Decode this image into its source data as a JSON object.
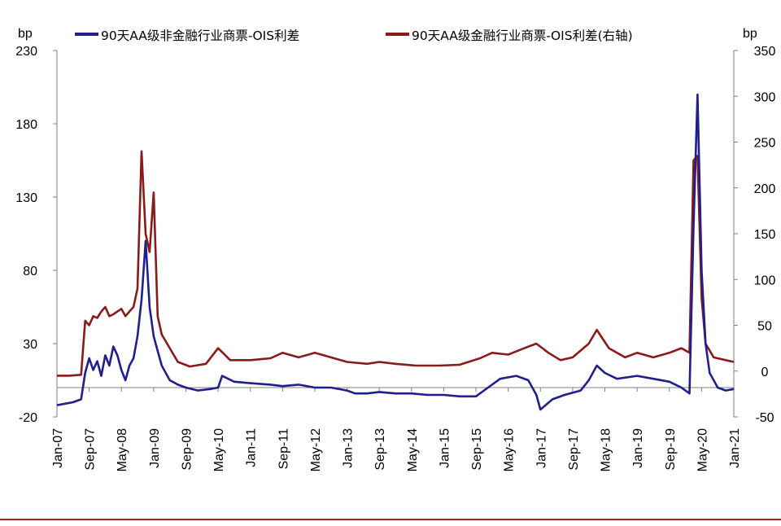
{
  "chart_data": {
    "type": "line",
    "title": "",
    "y_left": {
      "unit": "bp",
      "min": -20,
      "max": 230,
      "ticks": [
        -20,
        30,
        80,
        130,
        180,
        230
      ],
      "negative_color": "#FF0000"
    },
    "y_right": {
      "unit": "bp",
      "min": -50,
      "max": 350,
      "ticks": [
        -50,
        0,
        50,
        100,
        150,
        200,
        250,
        300,
        350
      ]
    },
    "x_ticks": [
      "Jan-07",
      "Sep-07",
      "May-08",
      "Jan-09",
      "Sep-09",
      "May-10",
      "Jan-11",
      "Sep-11",
      "May-12",
      "Jan-13",
      "Sep-13",
      "May-14",
      "Jan-15",
      "Sep-15",
      "May-16",
      "Jan-17",
      "Sep-17",
      "May-18",
      "Jan-19",
      "Sep-19",
      "May-20",
      "Jan-21"
    ],
    "x_range": [
      "2007-01",
      "2021-01"
    ],
    "grid": false,
    "legend_position": "top",
    "series": [
      {
        "name": "90天AA级非金融行业商票-OIS利差",
        "axis": "left",
        "color": "#1F1F8F",
        "points": [
          [
            "2007-01",
            -12
          ],
          [
            "2007-03",
            -11
          ],
          [
            "2007-05",
            -10
          ],
          [
            "2007-07",
            -8
          ],
          [
            "2007-08",
            10
          ],
          [
            "2007-09",
            20
          ],
          [
            "2007-10",
            12
          ],
          [
            "2007-11",
            18
          ],
          [
            "2007-12",
            8
          ],
          [
            "2008-01",
            22
          ],
          [
            "2008-02",
            15
          ],
          [
            "2008-03",
            28
          ],
          [
            "2008-04",
            22
          ],
          [
            "2008-05",
            12
          ],
          [
            "2008-06",
            5
          ],
          [
            "2008-07",
            15
          ],
          [
            "2008-08",
            20
          ],
          [
            "2008-09",
            35
          ],
          [
            "2008-10",
            60
          ],
          [
            "2008-11",
            100
          ],
          [
            "2008-12",
            55
          ],
          [
            "2009-01",
            35
          ],
          [
            "2009-02",
            25
          ],
          [
            "2009-03",
            15
          ],
          [
            "2009-05",
            5
          ],
          [
            "2009-07",
            2
          ],
          [
            "2009-09",
            0
          ],
          [
            "2009-12",
            -2
          ],
          [
            "2010-03",
            -1
          ],
          [
            "2010-05",
            0
          ],
          [
            "2010-06",
            8
          ],
          [
            "2010-09",
            4
          ],
          [
            "2011-01",
            3
          ],
          [
            "2011-06",
            2
          ],
          [
            "2011-09",
            1
          ],
          [
            "2012-01",
            2
          ],
          [
            "2012-05",
            0
          ],
          [
            "2012-09",
            0
          ],
          [
            "2013-01",
            -2
          ],
          [
            "2013-03",
            -4
          ],
          [
            "2013-06",
            -4
          ],
          [
            "2013-09",
            -3
          ],
          [
            "2014-01",
            -4
          ],
          [
            "2014-05",
            -4
          ],
          [
            "2014-09",
            -5
          ],
          [
            "2015-01",
            -5
          ],
          [
            "2015-05",
            -6
          ],
          [
            "2015-09",
            -6
          ],
          [
            "2015-12",
            0
          ],
          [
            "2016-03",
            6
          ],
          [
            "2016-07",
            8
          ],
          [
            "2016-10",
            5
          ],
          [
            "2016-12",
            -5
          ],
          [
            "2017-01",
            -15
          ],
          [
            "2017-04",
            -8
          ],
          [
            "2017-07",
            -5
          ],
          [
            "2017-11",
            -2
          ],
          [
            "2018-01",
            5
          ],
          [
            "2018-03",
            15
          ],
          [
            "2018-05",
            10
          ],
          [
            "2018-08",
            6
          ],
          [
            "2019-01",
            8
          ],
          [
            "2019-05",
            6
          ],
          [
            "2019-09",
            4
          ],
          [
            "2019-12",
            0
          ],
          [
            "2020-02",
            -4
          ],
          [
            "2020-03",
            110
          ],
          [
            "2020-04",
            200
          ],
          [
            "2020-05",
            80
          ],
          [
            "2020-06",
            30
          ],
          [
            "2020-07",
            10
          ],
          [
            "2020-09",
            0
          ],
          [
            "2020-11",
            -2
          ],
          [
            "2021-01",
            -1
          ]
        ]
      },
      {
        "name": "90天AA级金融行业商票-OIS利差(右轴)",
        "axis": "right",
        "color": "#8B1A1A",
        "points": [
          [
            "2007-01",
            -5
          ],
          [
            "2007-04",
            -5
          ],
          [
            "2007-07",
            -4
          ],
          [
            "2007-08",
            55
          ],
          [
            "2007-09",
            50
          ],
          [
            "2007-10",
            60
          ],
          [
            "2007-11",
            58
          ],
          [
            "2007-12",
            65
          ],
          [
            "2008-01",
            70
          ],
          [
            "2008-02",
            60
          ],
          [
            "2008-03",
            62
          ],
          [
            "2008-04",
            65
          ],
          [
            "2008-05",
            68
          ],
          [
            "2008-06",
            60
          ],
          [
            "2008-07",
            65
          ],
          [
            "2008-08",
            70
          ],
          [
            "2008-09",
            90
          ],
          [
            "2008-10",
            240
          ],
          [
            "2008-11",
            150
          ],
          [
            "2008-12",
            130
          ],
          [
            "2009-01",
            195
          ],
          [
            "2009-02",
            60
          ],
          [
            "2009-03",
            40
          ],
          [
            "2009-05",
            25
          ],
          [
            "2009-07",
            10
          ],
          [
            "2009-10",
            5
          ],
          [
            "2010-02",
            8
          ],
          [
            "2010-05",
            25
          ],
          [
            "2010-08",
            12
          ],
          [
            "2011-01",
            12
          ],
          [
            "2011-06",
            14
          ],
          [
            "2011-09",
            20
          ],
          [
            "2012-01",
            15
          ],
          [
            "2012-05",
            20
          ],
          [
            "2012-09",
            15
          ],
          [
            "2013-01",
            10
          ],
          [
            "2013-06",
            8
          ],
          [
            "2013-09",
            10
          ],
          [
            "2014-01",
            8
          ],
          [
            "2014-06",
            6
          ],
          [
            "2014-12",
            6
          ],
          [
            "2015-05",
            7
          ],
          [
            "2015-10",
            14
          ],
          [
            "2016-01",
            20
          ],
          [
            "2016-05",
            18
          ],
          [
            "2016-09",
            25
          ],
          [
            "2016-12",
            30
          ],
          [
            "2017-03",
            20
          ],
          [
            "2017-06",
            12
          ],
          [
            "2017-09",
            15
          ],
          [
            "2018-01",
            30
          ],
          [
            "2018-03",
            45
          ],
          [
            "2018-06",
            25
          ],
          [
            "2018-10",
            15
          ],
          [
            "2019-01",
            20
          ],
          [
            "2019-05",
            15
          ],
          [
            "2019-09",
            20
          ],
          [
            "2019-12",
            25
          ],
          [
            "2020-02",
            20
          ],
          [
            "2020-03",
            230
          ],
          [
            "2020-04",
            235
          ],
          [
            "2020-05",
            80
          ],
          [
            "2020-06",
            30
          ],
          [
            "2020-08",
            15
          ],
          [
            "2020-11",
            12
          ],
          [
            "2021-01",
            10
          ]
        ]
      }
    ]
  },
  "left_unit_label": "bp",
  "right_unit_label": "bp"
}
